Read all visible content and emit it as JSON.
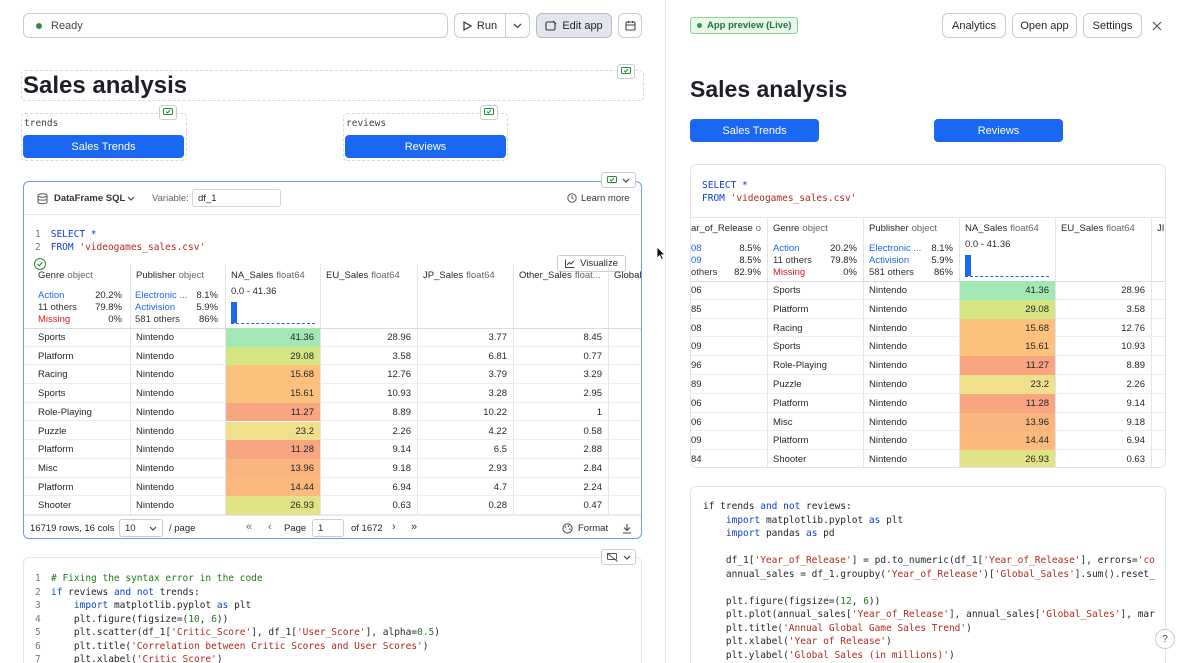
{
  "status": {
    "label": "Ready"
  },
  "toolbar": {
    "run": "Run",
    "edit_app": "Edit app"
  },
  "notebook": {
    "title": "Sales analysis",
    "trends_var": "trends",
    "reviews_var": "reviews",
    "btn_trends": "Sales Trends",
    "btn_reviews": "Reviews",
    "sql_cell": {
      "type": "DataFrame SQL",
      "variable_label": "Variable:",
      "variable": "df_1",
      "learn_more": "Learn more",
      "visualize": "Visualize",
      "code": [
        {
          "n": "1",
          "kw": "SELECT",
          "rest": " *"
        },
        {
          "n": "2",
          "kw": "FROM",
          "str": "'videogames_sales.csv'"
        }
      ]
    },
    "table": {
      "columns": [
        {
          "name": "Genre",
          "type": "object"
        },
        {
          "name": "Publisher",
          "type": "object"
        },
        {
          "name": "NA_Sales",
          "type": "float64"
        },
        {
          "name": "EU_Sales",
          "type": "float64"
        },
        {
          "name": "JP_Sales",
          "type": "float64"
        },
        {
          "name": "Other_Sales",
          "type": "float..."
        },
        {
          "name": "Global",
          "type": ""
        }
      ],
      "genre_summary": [
        {
          "k": "Action",
          "v": "20.2%"
        },
        {
          "k": "11 others",
          "v": "79.8%"
        },
        {
          "k": "Missing",
          "v": "0%"
        }
      ],
      "publisher_summary": [
        {
          "k": "Electronic ...",
          "v": "8.1%"
        },
        {
          "k": "Activision",
          "v": "5.9%"
        },
        {
          "k": "581 others",
          "v": "86%"
        }
      ],
      "na_range": "0.0 - 41.36",
      "rows": [
        {
          "genre": "Sports",
          "pub": "Nintendo",
          "na": "41.36",
          "eu": "28.96",
          "jp": "3.77",
          "ot": "8.45",
          "color": "#a3e8b4"
        },
        {
          "genre": "Platform",
          "pub": "Nintendo",
          "na": "29.08",
          "eu": "3.58",
          "jp": "6.81",
          "ot": "0.77",
          "color": "#d6e584"
        },
        {
          "genre": "Racing",
          "pub": "Nintendo",
          "na": "15.68",
          "eu": "12.76",
          "jp": "3.79",
          "ot": "3.29",
          "color": "#fcc27c"
        },
        {
          "genre": "Sports",
          "pub": "Nintendo",
          "na": "15.61",
          "eu": "10.93",
          "jp": "3.28",
          "ot": "2.95",
          "color": "#fcc27c"
        },
        {
          "genre": "Role-Playing",
          "pub": "Nintendo",
          "na": "11.27",
          "eu": "8.89",
          "jp": "10.22",
          "ot": "1",
          "color": "#f8a582"
        },
        {
          "genre": "Puzzle",
          "pub": "Nintendo",
          "na": "23.2",
          "eu": "2.26",
          "jp": "4.22",
          "ot": "0.58",
          "color": "#f0e08c"
        },
        {
          "genre": "Platform",
          "pub": "Nintendo",
          "na": "11.28",
          "eu": "9.14",
          "jp": "6.5",
          "ot": "2.88",
          "color": "#f8a582"
        },
        {
          "genre": "Misc",
          "pub": "Nintendo",
          "na": "13.96",
          "eu": "9.18",
          "jp": "2.93",
          "ot": "2.84",
          "color": "#fab47e"
        },
        {
          "genre": "Platform",
          "pub": "Nintendo",
          "na": "14.44",
          "eu": "6.94",
          "jp": "4.7",
          "ot": "2.24",
          "color": "#fbba7c"
        },
        {
          "genre": "Shooter",
          "pub": "Nintendo",
          "na": "26.93",
          "eu": "0.63",
          "jp": "0.28",
          "ot": "0.47",
          "color": "#e2e386"
        }
      ],
      "footer": {
        "rows_cols": "16719 rows, 16 cols",
        "page_size": "10",
        "per_page": "/ page",
        "page_label": "Page",
        "page": "1",
        "of": "of 1672",
        "format": "Format"
      }
    },
    "py_cell": {
      "lines": [
        [
          {
            "t": "# Fixing the syntax error in the code",
            "c": "cmt"
          }
        ],
        [
          {
            "t": "if",
            "c": "kw"
          },
          {
            "t": " reviews "
          },
          {
            "t": "and",
            "c": "kw"
          },
          {
            "t": " "
          },
          {
            "t": "not",
            "c": "kw"
          },
          {
            "t": " trends:"
          }
        ],
        [
          {
            "t": "    "
          },
          {
            "t": "import",
            "c": "kw"
          },
          {
            "t": " matplotlib.pyplot "
          },
          {
            "t": "as",
            "c": "kw"
          },
          {
            "t": " plt"
          }
        ],
        [
          {
            "t": "    plt.figure(figsize=("
          },
          {
            "t": "10",
            "c": "nm"
          },
          {
            "t": ", "
          },
          {
            "t": "6",
            "c": "nm"
          },
          {
            "t": "))"
          }
        ],
        [
          {
            "t": "    plt.scatter(df_1["
          },
          {
            "t": "'Critic_Score'",
            "c": "st"
          },
          {
            "t": "], df_1["
          },
          {
            "t": "'User_Score'",
            "c": "st"
          },
          {
            "t": "], alpha="
          },
          {
            "t": "0.5",
            "c": "nm"
          },
          {
            "t": ")"
          }
        ],
        [
          {
            "t": "    plt.title("
          },
          {
            "t": "'Correlation between Critic Scores and User Scores'",
            "c": "st"
          },
          {
            "t": ")"
          }
        ],
        [
          {
            "t": "    plt.xlabel("
          },
          {
            "t": "'Critic Score'",
            "c": "st"
          },
          {
            "t": ")"
          }
        ]
      ]
    }
  },
  "preview": {
    "badge": "App preview (Live)",
    "analytics": "Analytics",
    "open_app": "Open app",
    "settings": "Settings",
    "title": "Sales analysis",
    "btn_trends": "Sales Trends",
    "btn_reviews": "Reviews",
    "code": {
      "kw1": "SELECT",
      "rest1": " *",
      "kw2": "FROM",
      "str2": "'videogames_sales.csv'"
    },
    "columns": [
      {
        "name": "ar_of_Release",
        "type": "o.."
      },
      {
        "name": "Genre",
        "type": "object"
      },
      {
        "name": "Publisher",
        "type": "object"
      },
      {
        "name": "NA_Sales",
        "type": "float64"
      },
      {
        "name": "EU_Sales",
        "type": "float64"
      },
      {
        "name": "JI",
        "type": ""
      }
    ],
    "year_summary": [
      {
        "k": "08",
        "v": "8.5%"
      },
      {
        "k": "09",
        "v": "8.5%"
      },
      {
        "k": "others",
        "v": "82.9%"
      }
    ],
    "rows": [
      {
        "yr": "06",
        "genre": "Sports",
        "pub": "Nintendo",
        "na": "41.36",
        "eu": "28.96",
        "color": "#a3e8b4"
      },
      {
        "yr": "85",
        "genre": "Platform",
        "pub": "Nintendo",
        "na": "29.08",
        "eu": "3.58",
        "color": "#d6e584"
      },
      {
        "yr": "08",
        "genre": "Racing",
        "pub": "Nintendo",
        "na": "15.68",
        "eu": "12.76",
        "color": "#fcc27c"
      },
      {
        "yr": "09",
        "genre": "Sports",
        "pub": "Nintendo",
        "na": "15.61",
        "eu": "10.93",
        "color": "#fcc27c"
      },
      {
        "yr": "96",
        "genre": "Role-Playing",
        "pub": "Nintendo",
        "na": "11.27",
        "eu": "8.89",
        "color": "#f8a582"
      },
      {
        "yr": "89",
        "genre": "Puzzle",
        "pub": "Nintendo",
        "na": "23.2",
        "eu": "2.26",
        "color": "#f0e08c"
      },
      {
        "yr": "06",
        "genre": "Platform",
        "pub": "Nintendo",
        "na": "11.28",
        "eu": "9.14",
        "color": "#f8a582"
      },
      {
        "yr": "06",
        "genre": "Misc",
        "pub": "Nintendo",
        "na": "13.96",
        "eu": "9.18",
        "color": "#fab47e"
      },
      {
        "yr": "09",
        "genre": "Platform",
        "pub": "Nintendo",
        "na": "14.44",
        "eu": "6.94",
        "color": "#fbba7c"
      },
      {
        "yr": "84",
        "genre": "Shooter",
        "pub": "Nintendo",
        "na": "26.93",
        "eu": "0.63",
        "color": "#e2e386"
      }
    ],
    "py_lines": [
      [
        {
          "t": "if",
          "c": ""
        },
        {
          "t": " trends "
        },
        {
          "t": "and",
          "c": "kw"
        },
        {
          "t": " "
        },
        {
          "t": "not",
          "c": "kw"
        },
        {
          "t": " reviews:"
        }
      ],
      [
        {
          "t": "    "
        },
        {
          "t": "import",
          "c": "kw"
        },
        {
          "t": " matplotlib.pyplot "
        },
        {
          "t": "as",
          "c": "kw"
        },
        {
          "t": " plt"
        }
      ],
      [
        {
          "t": "    "
        },
        {
          "t": "import",
          "c": "kw"
        },
        {
          "t": " pandas "
        },
        {
          "t": "as",
          "c": "kw"
        },
        {
          "t": " pd"
        }
      ],
      [
        {
          "t": ""
        }
      ],
      [
        {
          "t": "    df_1["
        },
        {
          "t": "'Year_of_Release'",
          "c": "st"
        },
        {
          "t": "] = pd.to_numeric(df_1["
        },
        {
          "t": "'Year_of_Release'",
          "c": "st"
        },
        {
          "t": "], errors="
        },
        {
          "t": "'co",
          "c": "st"
        }
      ],
      [
        {
          "t": "    annual_sales = df_1.groupby("
        },
        {
          "t": "'Year_of_Release'",
          "c": "st"
        },
        {
          "t": ")["
        },
        {
          "t": "'Global_Sales'",
          "c": "st"
        },
        {
          "t": "].sum().reset_"
        }
      ],
      [
        {
          "t": ""
        }
      ],
      [
        {
          "t": "    plt.figure(figsize=("
        },
        {
          "t": "12",
          "c": "nm"
        },
        {
          "t": ", "
        },
        {
          "t": "6",
          "c": "nm"
        },
        {
          "t": "))"
        }
      ],
      [
        {
          "t": "    plt.plot(annual_sales["
        },
        {
          "t": "'Year_of_Release'",
          "c": "st"
        },
        {
          "t": "], annual_sales["
        },
        {
          "t": "'Global_Sales'",
          "c": "st"
        },
        {
          "t": "], mar"
        }
      ],
      [
        {
          "t": "    plt.title("
        },
        {
          "t": "'Annual Global Game Sales Trend'",
          "c": "st"
        },
        {
          "t": ")"
        }
      ],
      [
        {
          "t": "    plt.xlabel("
        },
        {
          "t": "'Year of Release'",
          "c": "st"
        },
        {
          "t": ")"
        }
      ],
      [
        {
          "t": "    plt.ylabel("
        },
        {
          "t": "'Global Sales (in millions)'",
          "c": "st"
        },
        {
          "t": ")"
        }
      ]
    ]
  }
}
